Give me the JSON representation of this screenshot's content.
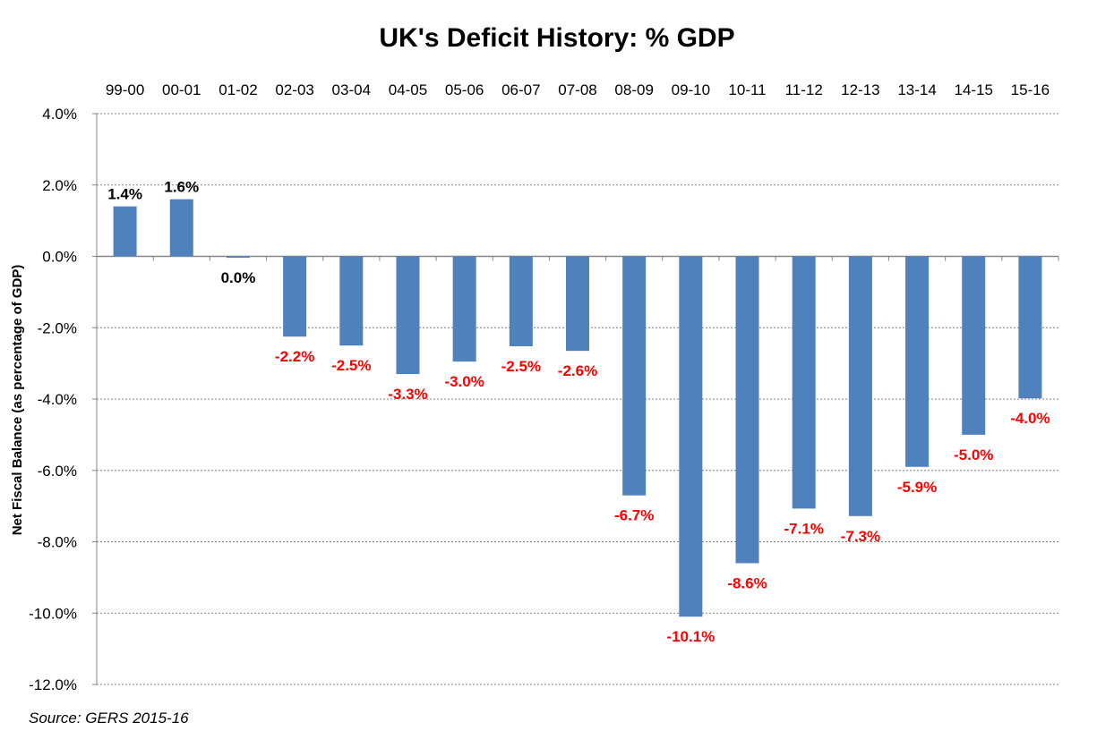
{
  "chart_data": {
    "type": "bar",
    "title": "UK's Deficit History: % GDP",
    "ylabel": "Net Fiscal Balance  (as percentage of GDP)",
    "xlabel": "",
    "source": "Source: GERS 2015-16",
    "categories": [
      "99-00",
      "00-01",
      "01-02",
      "02-03",
      "03-04",
      "04-05",
      "05-06",
      "06-07",
      "07-08",
      "08-09",
      "09-10",
      "10-11",
      "11-12",
      "12-13",
      "13-14",
      "14-15",
      "15-16"
    ],
    "values": [
      1.4,
      1.6,
      -0.04,
      -2.25,
      -2.5,
      -3.3,
      -2.95,
      -2.52,
      -2.65,
      -6.7,
      -10.1,
      -8.6,
      -7.07,
      -7.28,
      -5.9,
      -5.0,
      -3.98
    ],
    "data_labels": [
      "1.4%",
      "1.6%",
      "0.0%",
      "-2.2%",
      "-2.5%",
      "-3.3%",
      "-3.0%",
      "-2.5%",
      "-2.6%",
      "-6.7%",
      "-10.1%",
      "-8.6%",
      "-7.1%",
      "-7.3%",
      "-5.9%",
      "-5.0%",
      "-4.0%"
    ],
    "ylim": [
      -12,
      4
    ],
    "yticks": [
      "4.0%",
      "2.0%",
      "0.0%",
      "-2.0%",
      "-4.0%",
      "-6.0%",
      "-8.0%",
      "-10.0%",
      "-12.0%"
    ],
    "ytick_values": [
      4,
      2,
      0,
      -2,
      -4,
      -6,
      -8,
      -10,
      -12
    ],
    "x_labels_position": "top",
    "grid": true,
    "legend": "none",
    "colors": {
      "bar": "#4f81bd",
      "positive_label": "#000000",
      "negative_label": "#ff0000",
      "grid": "#808080"
    }
  }
}
